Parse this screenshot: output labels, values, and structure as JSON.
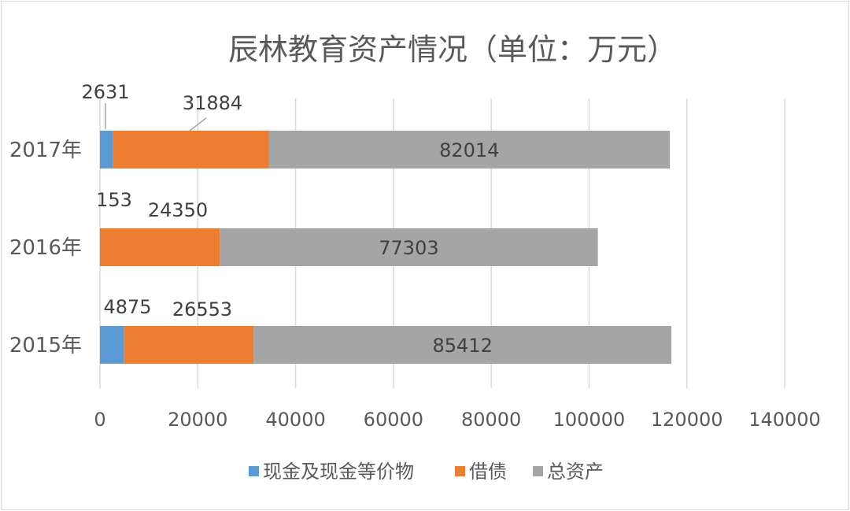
{
  "chart_data": {
    "type": "bar",
    "orientation": "horizontal",
    "stacked": true,
    "title": "辰林教育资产情况（单位：万元）",
    "categories": [
      "2017年",
      "2016年",
      "2015年"
    ],
    "series": [
      {
        "name": "现金及现金等价物",
        "color": "#5b9bd5",
        "values": [
          2631,
          153,
          4875
        ]
      },
      {
        "name": "借债",
        "color": "#ed7d31",
        "values": [
          31884,
          24350,
          26553
        ]
      },
      {
        "name": "总资产",
        "color": "#a5a5a5",
        "values": [
          82014,
          77303,
          85412
        ]
      }
    ],
    "xlim": [
      0,
      140000
    ],
    "xticks": [
      "0",
      "20000",
      "40000",
      "60000",
      "80000",
      "100000",
      "120000",
      "140000"
    ],
    "grid": true,
    "legend_position": "bottom"
  }
}
